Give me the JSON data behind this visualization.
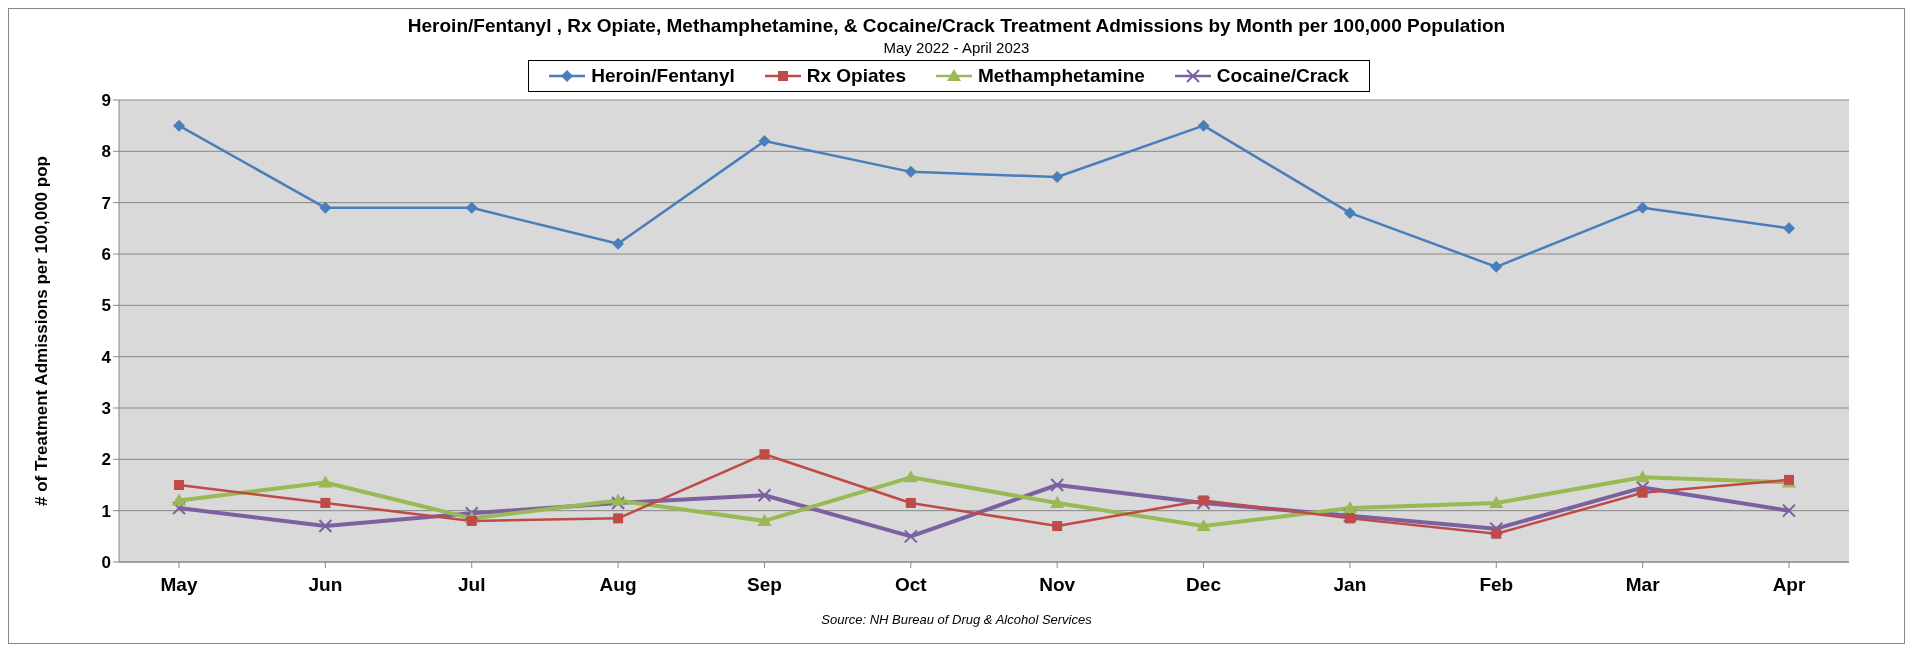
{
  "chart_data": {
    "type": "line",
    "title": "Heroin/Fentanyl , Rx Opiate, Methamphetamine, & Cocaine/Crack Treatment Admissions by Month per 100,000 Population",
    "subtitle": "May 2022 - April 2023",
    "ylabel": "# of Treatment Admissions per 100,000 pop",
    "annotations": [
      "Source: NH Bureau of Drug & Alcohol Services"
    ],
    "categories": [
      "May",
      "Jun",
      "Jul",
      "Aug",
      "Sep",
      "Oct",
      "Nov",
      "Dec",
      "Jan",
      "Feb",
      "Mar",
      "Apr"
    ],
    "series": [
      {
        "name": "Heroin/Fentanyl",
        "color": "#4a7ebb",
        "marker": "diamond",
        "values": [
          8.5,
          6.9,
          6.9,
          6.2,
          8.2,
          7.6,
          7.5,
          8.5,
          6.8,
          5.75,
          6.9,
          6.5
        ]
      },
      {
        "name": "Rx Opiates",
        "color": "#be4b48",
        "marker": "square",
        "values": [
          1.5,
          1.15,
          0.8,
          0.85,
          2.1,
          1.15,
          0.7,
          1.2,
          0.85,
          0.55,
          1.35,
          1.6
        ]
      },
      {
        "name": "Methamphetamine",
        "color": "#98b954",
        "marker": "triangle",
        "values": [
          1.2,
          1.55,
          0.85,
          1.2,
          0.8,
          1.65,
          1.15,
          0.7,
          1.05,
          1.15,
          1.65,
          1.55
        ]
      },
      {
        "name": "Cocaine/Crack",
        "color": "#7d60a0",
        "marker": "cross",
        "values": [
          1.05,
          0.7,
          0.95,
          1.15,
          1.3,
          0.5,
          1.5,
          1.15,
          0.9,
          0.65,
          1.45,
          1.0
        ]
      }
    ],
    "ylim": [
      0,
      9
    ],
    "yticks": [
      0,
      1,
      2,
      3,
      4,
      5,
      6,
      7,
      8,
      9
    ],
    "grid": "y",
    "legend": "top"
  }
}
